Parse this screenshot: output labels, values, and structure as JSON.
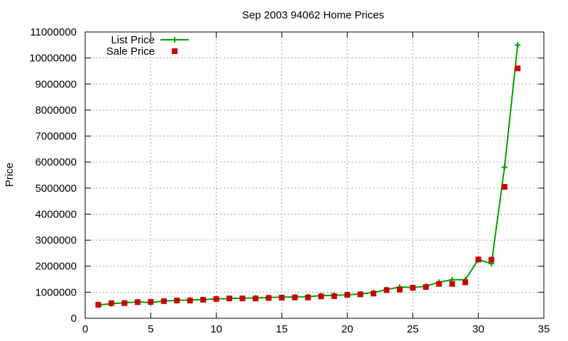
{
  "chart_data": {
    "type": "line",
    "title": "Sep 2003 94062 Home Prices",
    "xlabel": "",
    "ylabel": "Price",
    "xlim": [
      0,
      35
    ],
    "ylim": [
      0,
      11000000
    ],
    "x_ticks": [
      0,
      5,
      10,
      15,
      20,
      25,
      30,
      35
    ],
    "y_ticks": [
      0,
      1000000,
      2000000,
      3000000,
      4000000,
      5000000,
      6000000,
      7000000,
      8000000,
      9000000,
      10000000,
      11000000
    ],
    "grid": true,
    "legend_position": "top-left",
    "x": [
      1,
      2,
      3,
      4,
      5,
      6,
      7,
      8,
      9,
      10,
      11,
      12,
      13,
      14,
      15,
      16,
      17,
      18,
      19,
      20,
      21,
      22,
      23,
      24,
      25,
      26,
      27,
      28,
      29,
      30,
      31,
      32,
      33
    ],
    "series": [
      {
        "name": "List Price",
        "style": "line-with-plus",
        "color": "#00a000",
        "values": [
          510000,
          560000,
          590000,
          630000,
          600000,
          660000,
          690000,
          700000,
          720000,
          740000,
          760000,
          770000,
          780000,
          800000,
          810000,
          820000,
          830000,
          870000,
          880000,
          900000,
          930000,
          990000,
          1100000,
          1200000,
          1180000,
          1230000,
          1390000,
          1480000,
          1480000,
          2250000,
          2100000,
          5800000,
          10500000
        ]
      },
      {
        "name": "Sale Price",
        "style": "square-points",
        "color": "#cc0000",
        "values": [
          520000,
          580000,
          580000,
          620000,
          630000,
          660000,
          680000,
          680000,
          710000,
          740000,
          760000,
          760000,
          760000,
          780000,
          790000,
          800000,
          800000,
          840000,
          850000,
          900000,
          920000,
          950000,
          1080000,
          1100000,
          1170000,
          1200000,
          1320000,
          1320000,
          1380000,
          2260000,
          2250000,
          5050000,
          9600000
        ]
      }
    ]
  }
}
